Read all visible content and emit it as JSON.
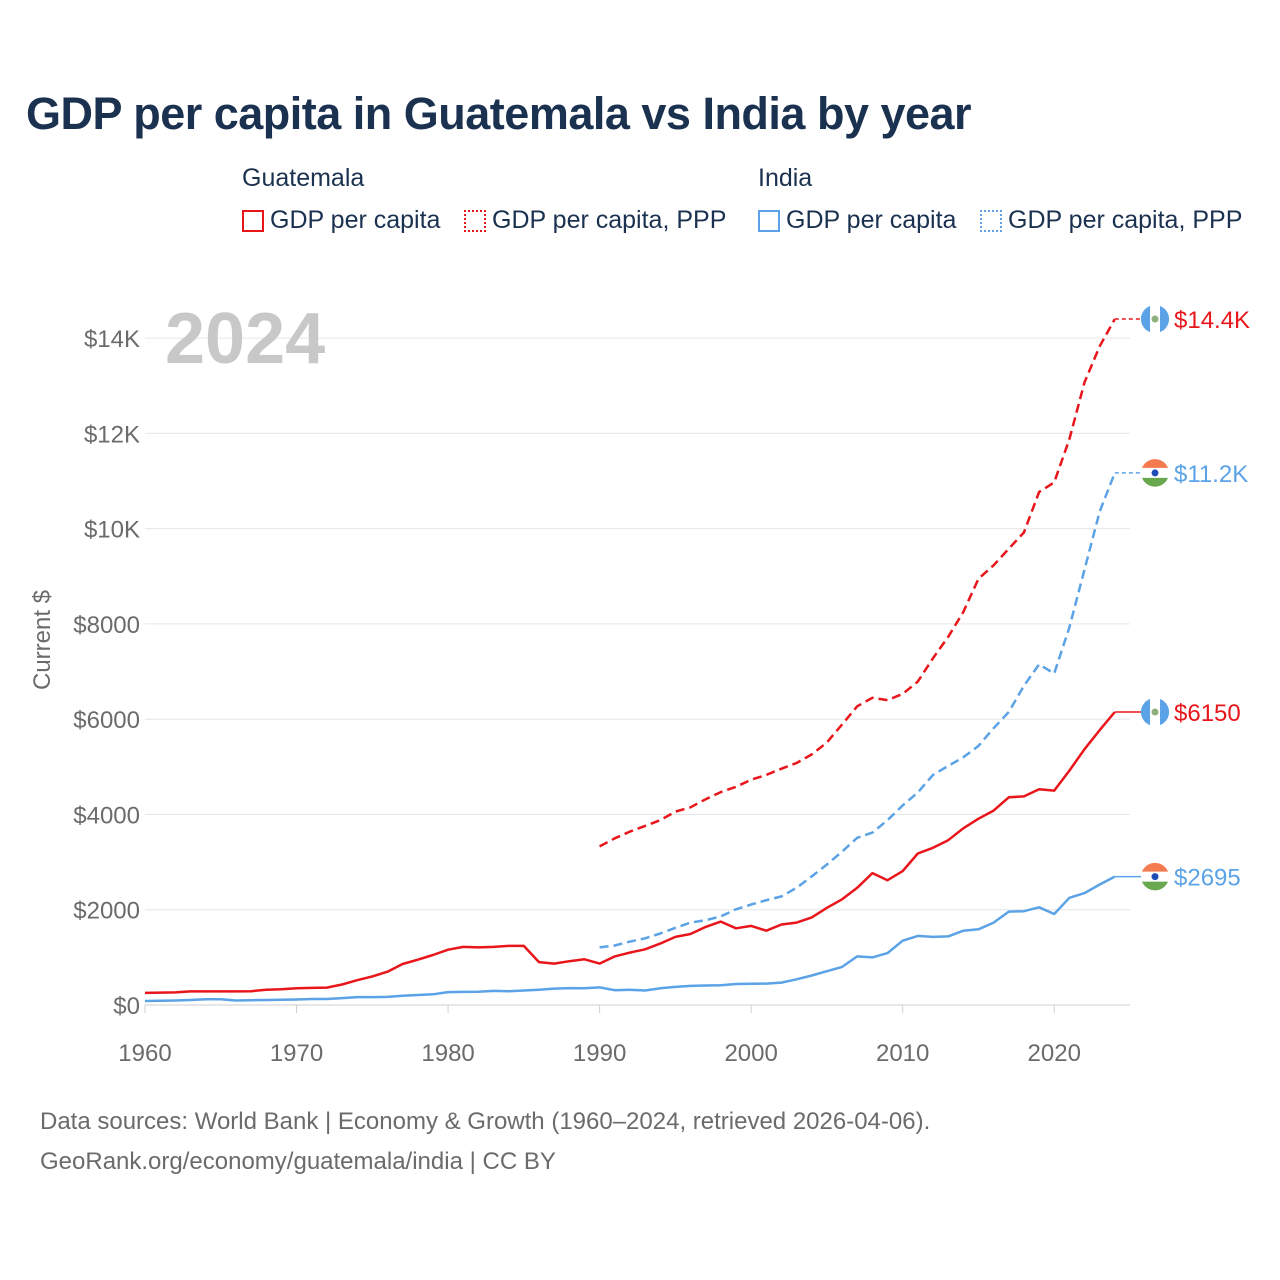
{
  "chart_data": {
    "type": "line",
    "title": "GDP per capita in Guatemala vs India by year",
    "year_label": "2024",
    "ylabel": "Current $",
    "xlabel": "",
    "xlim": [
      1960,
      2025
    ],
    "ylim": [
      0,
      14800
    ],
    "x_ticks": [
      1960,
      1970,
      1980,
      1990,
      2000,
      2010,
      2020
    ],
    "y_ticks": [
      {
        "value": 0,
        "label": "$0"
      },
      {
        "value": 2000,
        "label": "$2000"
      },
      {
        "value": 4000,
        "label": "$4000"
      },
      {
        "value": 6000,
        "label": "$6000"
      },
      {
        "value": 8000,
        "label": "$8000"
      },
      {
        "value": 10000,
        "label": "$10K"
      },
      {
        "value": 12000,
        "label": "$12K"
      },
      {
        "value": 14000,
        "label": "$14K"
      }
    ],
    "legend": {
      "groups": [
        {
          "country": "Guatemala",
          "items": [
            "GDP per capita",
            "GDP per capita, PPP"
          ]
        },
        {
          "country": "India",
          "items": [
            "GDP per capita",
            "GDP per capita, PPP"
          ]
        }
      ]
    },
    "series": [
      {
        "name": "Guatemala GDP per capita",
        "color": "#e8161b",
        "dashed": false,
        "end_label": "$6150",
        "start_year": 1960,
        "values": [
          255,
          260,
          265,
          285,
          285,
          285,
          285,
          290,
          320,
          330,
          350,
          360,
          365,
          430,
          520,
          600,
          700,
          860,
          950,
          1050,
          1160,
          1220,
          1210,
          1220,
          1240,
          1240,
          900,
          870,
          920,
          960,
          870,
          1020,
          1100,
          1170,
          1290,
          1430,
          1490,
          1640,
          1750,
          1610,
          1660,
          1560,
          1690,
          1730,
          1840,
          2040,
          2220,
          2460,
          2770,
          2620,
          2810,
          3180,
          3300,
          3460,
          3710,
          3910,
          4080,
          4360,
          4380,
          4530,
          4500,
          4920,
          5370,
          5770,
          6150
        ]
      },
      {
        "name": "Guatemala GDP per capita, PPP",
        "color": "#e8161b",
        "dashed": true,
        "end_label": "$14.4K",
        "start_year": 1990,
        "values": [
          3330,
          3500,
          3640,
          3760,
          3880,
          4060,
          4150,
          4320,
          4470,
          4580,
          4730,
          4830,
          4960,
          5080,
          5260,
          5510,
          5890,
          6270,
          6450,
          6400,
          6530,
          6790,
          7280,
          7730,
          8250,
          8950,
          9230,
          9580,
          9920,
          10770,
          10970,
          11880,
          13070,
          13830,
          14400
        ]
      },
      {
        "name": "India GDP per capita",
        "color": "#5ba3e6",
        "dashed": false,
        "end_label": "$2695",
        "start_year": 1960,
        "values": [
          85,
          90,
          95,
          105,
          120,
          120,
          95,
          100,
          105,
          110,
          115,
          125,
          125,
          145,
          165,
          165,
          170,
          195,
          210,
          225,
          270,
          275,
          280,
          295,
          290,
          305,
          320,
          345,
          355,
          350,
          370,
          310,
          320,
          305,
          350,
          380,
          400,
          410,
          415,
          440,
          445,
          450,
          470,
          540,
          620,
          710,
          800,
          1020,
          1000,
          1090,
          1350,
          1450,
          1430,
          1440,
          1560,
          1590,
          1730,
          1960,
          1970,
          2050,
          1910,
          2250,
          2350,
          2530,
          2695
        ]
      },
      {
        "name": "India GDP per capita, PPP",
        "color": "#5ba3e6",
        "dashed": true,
        "end_label": "$11.2K",
        "start_year": 1990,
        "values": [
          1210,
          1250,
          1330,
          1400,
          1500,
          1620,
          1730,
          1780,
          1860,
          2010,
          2110,
          2200,
          2280,
          2460,
          2700,
          2950,
          3220,
          3510,
          3620,
          3880,
          4190,
          4460,
          4830,
          5020,
          5200,
          5440,
          5810,
          6150,
          6700,
          7150,
          6960,
          7930,
          9140,
          10360,
          11170
        ]
      }
    ]
  },
  "footer": {
    "line1": "Data sources: World Bank | Economy & Growth (1960–2024, retrieved 2026-04-06).",
    "line2": "GeoRank.org/economy/guatemala/india | CC BY"
  }
}
